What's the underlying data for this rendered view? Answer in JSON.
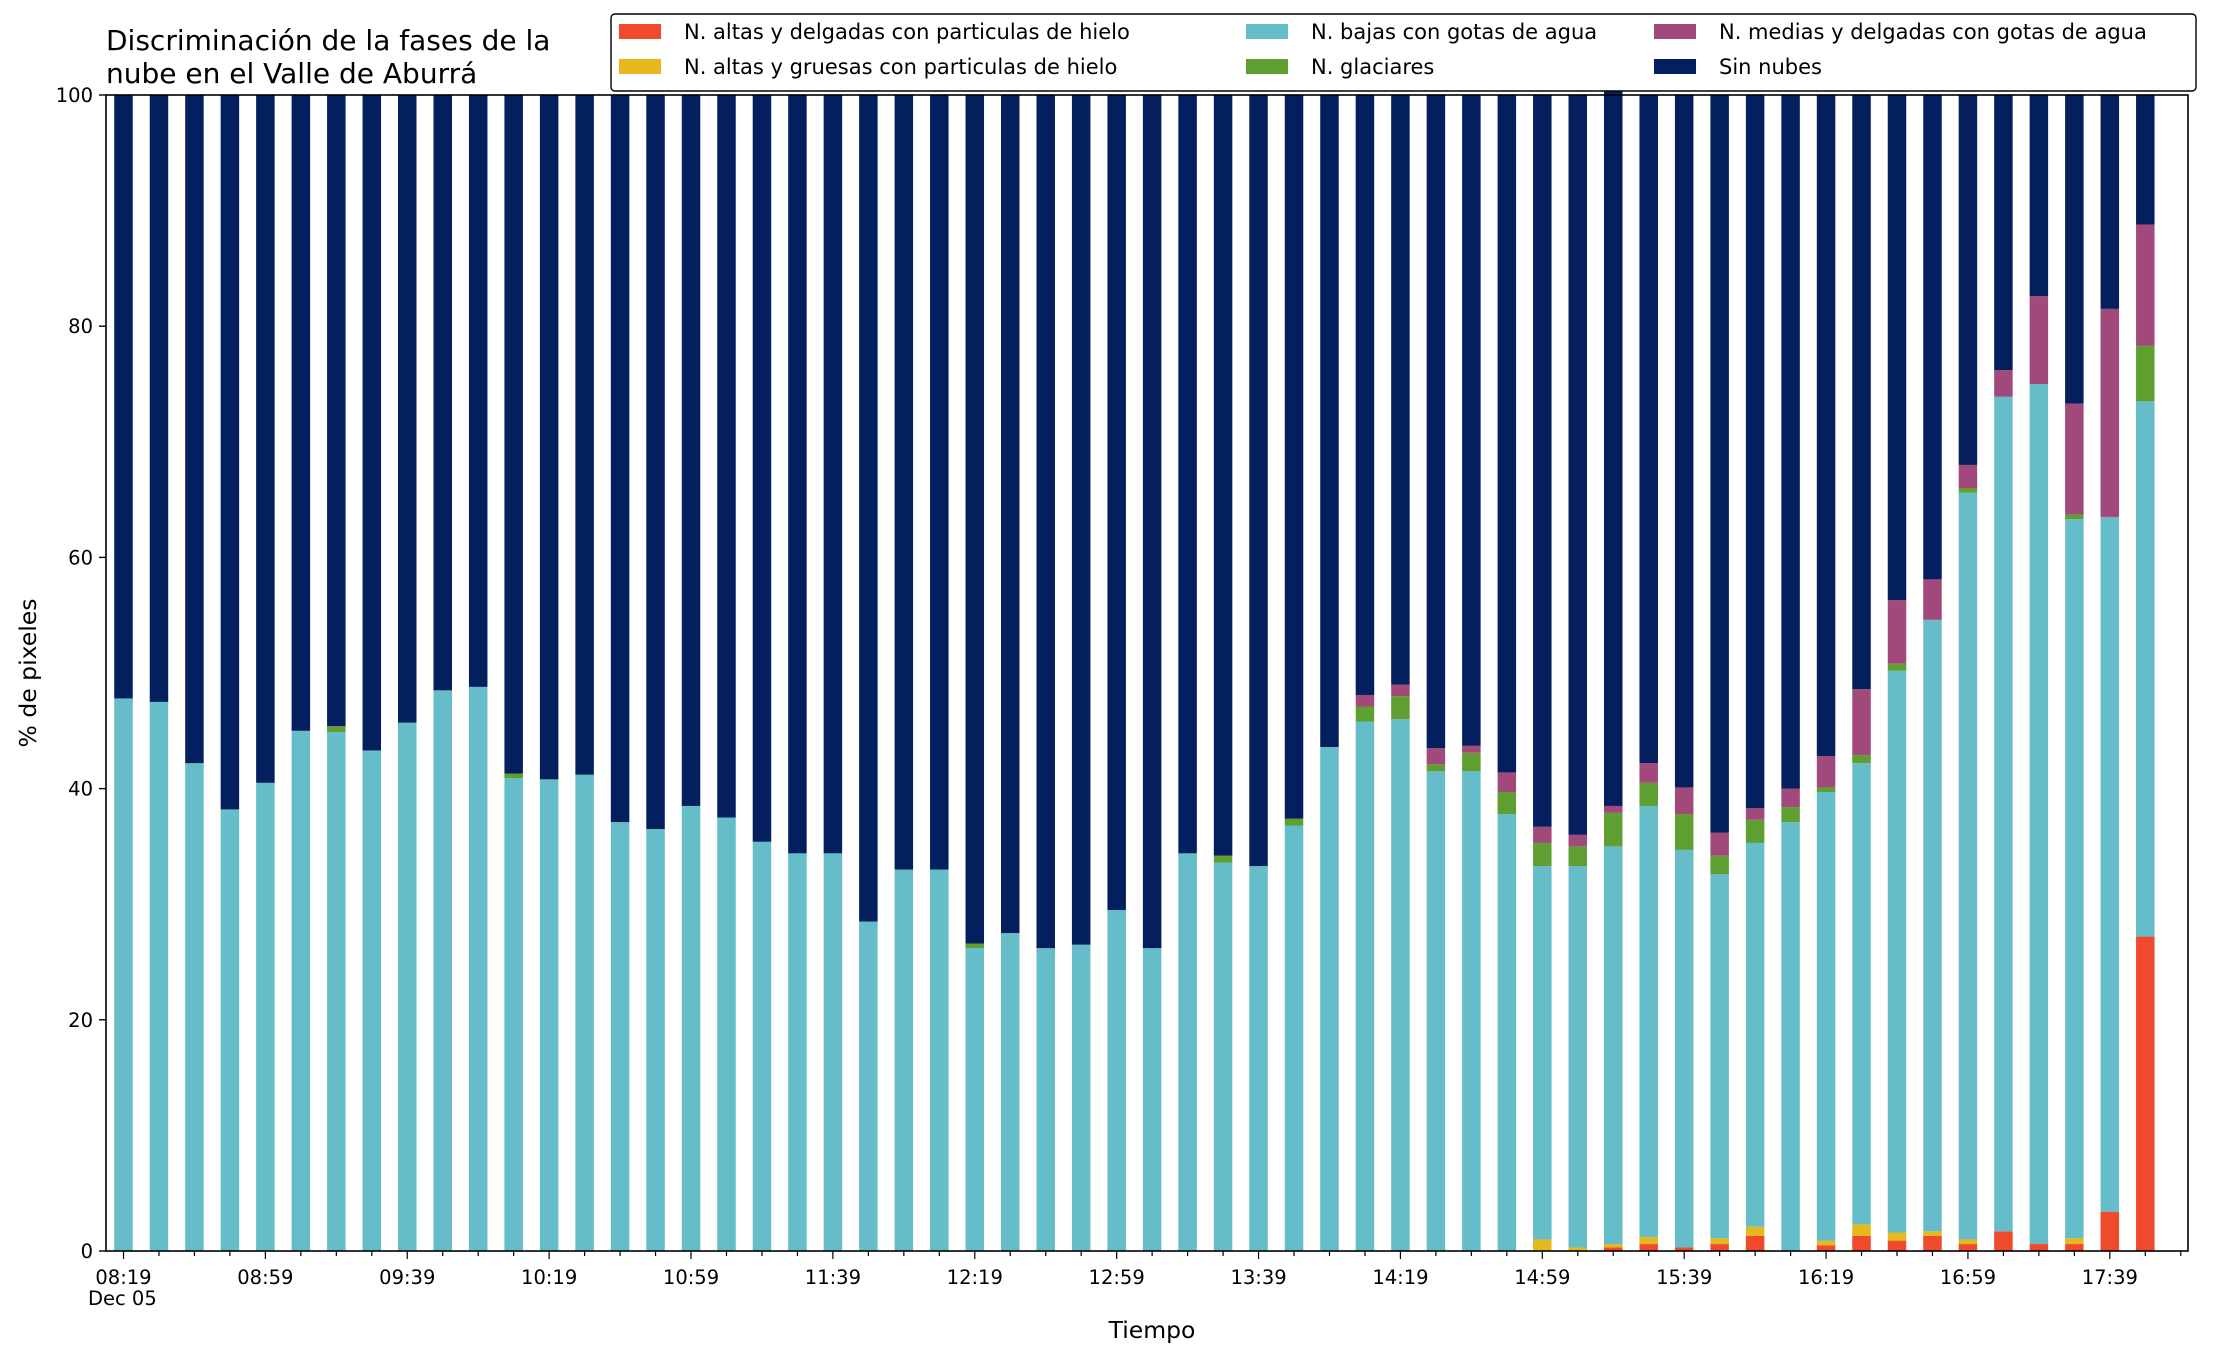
{
  "chart_data": {
    "type": "bar",
    "stacked": true,
    "title": [
      "Discriminación de la fases de la",
      "nube en el Valle de Aburrá"
    ],
    "xlabel": "Tiempo",
    "ylabel": "% de pixeles",
    "ylim": [
      0,
      100
    ],
    "yticks": [
      "0",
      "20",
      "40",
      "60",
      "80",
      "100"
    ],
    "xtick_labels": [
      "08:19",
      "08:59",
      "09:39",
      "10:19",
      "10:59",
      "11:39",
      "12:19",
      "12:59",
      "13:39",
      "14:19",
      "14:59",
      "15:39",
      "16:19",
      "16:59",
      "17:39"
    ],
    "xtick_sublabel": "Dec 05",
    "grid": false,
    "legend": {
      "placement": "top-right",
      "columns": 3
    },
    "categories": [
      "08:19",
      "08:29",
      "08:39",
      "08:49",
      "08:59",
      "09:09",
      "09:19",
      "09:29",
      "09:39",
      "09:49",
      "09:59",
      "10:09",
      "10:19",
      "10:29",
      "10:39",
      "10:49",
      "10:59",
      "11:09",
      "11:19",
      "11:29",
      "11:39",
      "11:49",
      "11:59",
      "12:09",
      "12:19",
      "12:29",
      "12:39",
      "12:49",
      "12:59",
      "13:09",
      "13:19",
      "13:29",
      "13:39",
      "13:49",
      "13:59",
      "14:09",
      "14:19",
      "14:29",
      "14:39",
      "14:49",
      "14:59",
      "15:09",
      "15:19",
      "15:29",
      "15:39",
      "15:49",
      "15:59",
      "16:09",
      "16:19",
      "16:29",
      "16:39",
      "16:49",
      "16:59",
      "17:09",
      "17:19",
      "17:29",
      "17:39",
      "17:49"
    ],
    "series": [
      {
        "name": "N. altas y delgadas con particulas de hielo",
        "color": "#ee4a2b",
        "values": [
          0,
          0,
          0,
          0,
          0,
          0,
          0,
          0,
          0,
          0,
          0,
          0,
          0,
          0,
          0,
          0,
          0,
          0,
          0,
          0,
          0,
          0,
          0,
          0,
          0,
          0,
          0,
          0,
          0,
          0,
          0,
          0,
          0,
          0,
          0,
          0,
          0,
          0,
          0,
          0,
          0,
          0,
          0.3,
          0.6,
          0.3,
          0.6,
          1.3,
          0,
          0.5,
          1.3,
          0.9,
          1.3,
          0.6,
          1.7,
          0.6,
          0.6,
          3.4,
          27.2
        ]
      },
      {
        "name": "N. altas y gruesas con particulas de hielo",
        "color": "#e5b81e",
        "values": [
          0,
          0,
          0,
          0,
          0,
          0,
          0,
          0,
          0,
          0,
          0,
          0,
          0,
          0,
          0,
          0,
          0,
          0,
          0,
          0,
          0,
          0,
          0,
          0,
          0,
          0,
          0,
          0,
          0,
          0,
          0,
          0,
          0,
          0,
          0,
          0,
          0,
          0,
          0,
          0,
          1,
          0.3,
          0.3,
          0.6,
          0,
          0.5,
          0.8,
          0,
          0.4,
          1,
          0.7,
          0.4,
          0.4,
          0,
          0,
          0.5,
          0,
          0
        ]
      },
      {
        "name": "N. bajas con gotas de agua",
        "color": "#66bdca",
        "values": [
          47.8,
          47.5,
          42.2,
          38.2,
          40.5,
          45,
          44.9,
          43.3,
          45.7,
          48.5,
          48.8,
          40.9,
          40.8,
          41.2,
          37.1,
          36.5,
          38.5,
          37.5,
          35.4,
          34.4,
          34.4,
          28.5,
          33,
          33,
          26.2,
          27.5,
          26.2,
          26.5,
          29.5,
          26.2,
          34.4,
          33.6,
          33.3,
          36.8,
          43.6,
          45.8,
          46,
          41.5,
          41.5,
          37.8,
          32.3,
          33,
          34.4,
          37.3,
          34.4,
          31.5,
          33.2,
          37.1,
          38.8,
          39.9,
          48.6,
          52.9,
          64.6,
          72.2,
          74.4,
          62.2,
          60.1,
          46.3
        ]
      },
      {
        "name": "N. glaciares",
        "color": "#5f9e31",
        "values": [
          0,
          0,
          0,
          0,
          0,
          0,
          0.5,
          0,
          0,
          0,
          0,
          0.4,
          0,
          0,
          0,
          0,
          0,
          0,
          0,
          0,
          0,
          0,
          0,
          0,
          0.4,
          0,
          0,
          0,
          0,
          0,
          0,
          0.6,
          0,
          0.6,
          0,
          1.3,
          2,
          0.6,
          1.6,
          1.9,
          2,
          1.7,
          2.9,
          2,
          3.1,
          1.6,
          2,
          1.3,
          0.4,
          0.7,
          0.6,
          0,
          0.4,
          0,
          0,
          0.4,
          0,
          4.8
        ]
      },
      {
        "name": "N. medias y delgadas con gotas de agua",
        "color": "#a2497b",
        "values": [
          0,
          0,
          0,
          0,
          0,
          0,
          0,
          0,
          0,
          0,
          0,
          0,
          0,
          0,
          0,
          0,
          0,
          0,
          0,
          0,
          0,
          0,
          0,
          0,
          0,
          0,
          0,
          0,
          0,
          0,
          0,
          0,
          0,
          0,
          0,
          1,
          1,
          1.4,
          0.6,
          1.7,
          1.4,
          1,
          0.6,
          1.7,
          2.3,
          2,
          1,
          1.6,
          2.7,
          5.7,
          5.5,
          3.5,
          2,
          2.3,
          7.6,
          9.6,
          18,
          10.5
        ]
      },
      {
        "name": "Sin nubes",
        "color": "#031f5e",
        "values": [
          52.2,
          52.5,
          57.8,
          61.8,
          59.5,
          55,
          54.6,
          56.7,
          54.3,
          51.5,
          51.2,
          58.7,
          59.2,
          58.8,
          62.9,
          63.5,
          61.5,
          62.5,
          64.6,
          65.6,
          65.6,
          71.5,
          67,
          67,
          73.4,
          72.5,
          73.8,
          73.5,
          70.5,
          73.8,
          65.6,
          65.8,
          66.7,
          62.6,
          56.4,
          51.9,
          51,
          56.5,
          56.3,
          58.6,
          63.3,
          64,
          61.8,
          57.8,
          59.9,
          63.8,
          61.7,
          60,
          57.2,
          51.4,
          43.7,
          41.9,
          32,
          23.8,
          17.4,
          26.7,
          18.5,
          11.2
        ]
      }
    ]
  }
}
